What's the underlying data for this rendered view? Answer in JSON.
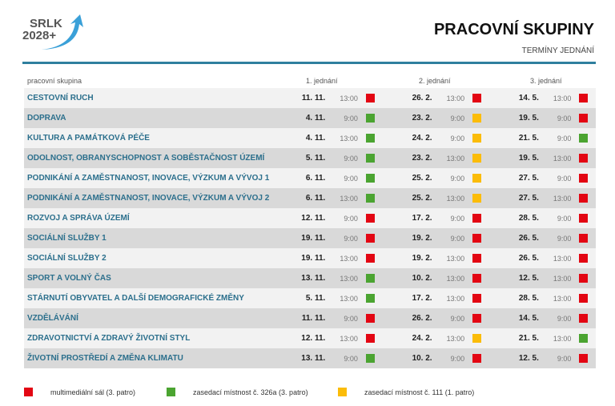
{
  "header": {
    "logo_text": [
      "SRLK",
      "2028+"
    ],
    "title": "PRACOVNÍ SKUPINY",
    "subtitle": "TERMÍNY JEDNÁNÍ"
  },
  "colors": {
    "red": "#e30613",
    "green": "#4ba431",
    "yellow": "#fbbc09",
    "accent": "#2f7f9e"
  },
  "columns": [
    "pracovní skupina",
    "1. jednání",
    "2. jednání",
    "3. jednání"
  ],
  "rows": [
    {
      "name": "CESTOVNÍ RUCH",
      "m": [
        [
          "11. 11.",
          "13:00",
          "red"
        ],
        [
          "26. 2.",
          "13:00",
          "red"
        ],
        [
          "14. 5.",
          "13:00",
          "red"
        ]
      ]
    },
    {
      "name": "DOPRAVA",
      "m": [
        [
          "4. 11.",
          "9:00",
          "green"
        ],
        [
          "23. 2.",
          "9:00",
          "yellow"
        ],
        [
          "19. 5.",
          "9:00",
          "red"
        ]
      ]
    },
    {
      "name": "KULTURA A PAMÁTKOVÁ PÉČE",
      "m": [
        [
          "4. 11.",
          "13:00",
          "green"
        ],
        [
          "24. 2.",
          "9:00",
          "yellow"
        ],
        [
          "21. 5.",
          "9:00",
          "green"
        ]
      ]
    },
    {
      "name": "ODOLNOST, OBRANYSCHOPNOST A SOBĚSTAČNOST ÚZEMÍ",
      "m": [
        [
          "5. 11.",
          "9:00",
          "green"
        ],
        [
          "23. 2.",
          "13:00",
          "yellow"
        ],
        [
          "19. 5.",
          "13:00",
          "red"
        ]
      ]
    },
    {
      "name": "PODNIKÁNÍ A ZAMĚSTNANOST, INOVACE, VÝZKUM A VÝVOJ 1",
      "m": [
        [
          "6. 11.",
          "9:00",
          "green"
        ],
        [
          "25. 2.",
          "9:00",
          "yellow"
        ],
        [
          "27. 5.",
          "9:00",
          "red"
        ]
      ]
    },
    {
      "name": "PODNIKÁNÍ A ZAMĚSTNANOST, INOVACE, VÝZKUM A VÝVOJ 2",
      "m": [
        [
          "6. 11.",
          "13:00",
          "green"
        ],
        [
          "25. 2.",
          "13:00",
          "yellow"
        ],
        [
          "27. 5.",
          "13:00",
          "red"
        ]
      ]
    },
    {
      "name": "ROZVOJ A SPRÁVA ÚZEMÍ",
      "m": [
        [
          "12. 11.",
          "9:00",
          "red"
        ],
        [
          "17. 2.",
          "9:00",
          "red"
        ],
        [
          "28. 5.",
          "9:00",
          "red"
        ]
      ]
    },
    {
      "name": "SOCIÁLNÍ SLUŽBY 1",
      "m": [
        [
          "19. 11.",
          "9:00",
          "red"
        ],
        [
          "19. 2.",
          "9:00",
          "red"
        ],
        [
          "26. 5.",
          "9:00",
          "red"
        ]
      ]
    },
    {
      "name": "SOCIÁLNÍ SLUŽBY 2",
      "m": [
        [
          "19. 11.",
          "13:00",
          "red"
        ],
        [
          "19. 2.",
          "13:00",
          "red"
        ],
        [
          "26. 5.",
          "13:00",
          "red"
        ]
      ]
    },
    {
      "name": "SPORT A VOLNÝ ČAS",
      "m": [
        [
          "13. 11.",
          "13:00",
          "green"
        ],
        [
          "10. 2.",
          "13:00",
          "red"
        ],
        [
          "12. 5.",
          "13:00",
          "red"
        ]
      ]
    },
    {
      "name": "STÁRNUTÍ OBYVATEL A DALŠÍ DEMOGRAFICKÉ ZMĚNY",
      "m": [
        [
          "5. 11.",
          "13:00",
          "green"
        ],
        [
          "17. 2.",
          "13:00",
          "red"
        ],
        [
          "28. 5.",
          "13:00",
          "red"
        ]
      ]
    },
    {
      "name": "VZDĚLÁVÁNÍ",
      "m": [
        [
          "11. 11.",
          "9:00",
          "red"
        ],
        [
          "26. 2.",
          "9:00",
          "red"
        ],
        [
          "14. 5.",
          "9:00",
          "red"
        ]
      ]
    },
    {
      "name": "ZDRAVOTNICTVÍ A ZDRAVÝ ŽIVOTNÍ STYL",
      "m": [
        [
          "12. 11.",
          "13:00",
          "red"
        ],
        [
          "24. 2.",
          "13:00",
          "yellow"
        ],
        [
          "21. 5.",
          "13:00",
          "green"
        ]
      ]
    },
    {
      "name": "ŽIVOTNÍ PROSTŘEDÍ A ZMĚNA KLIMATU",
      "m": [
        [
          "13. 11.",
          "9:00",
          "green"
        ],
        [
          "10. 2.",
          "9:00",
          "red"
        ],
        [
          "12. 5.",
          "9:00",
          "red"
        ]
      ]
    }
  ],
  "legend": [
    {
      "color": "red",
      "label": "multimediální sál (3. patro)"
    },
    {
      "color": "green",
      "label": "zasedací místnost č. 326a (3. patro)"
    },
    {
      "color": "yellow",
      "label": "zasedací místnost č. 111 (1. patro)"
    }
  ]
}
